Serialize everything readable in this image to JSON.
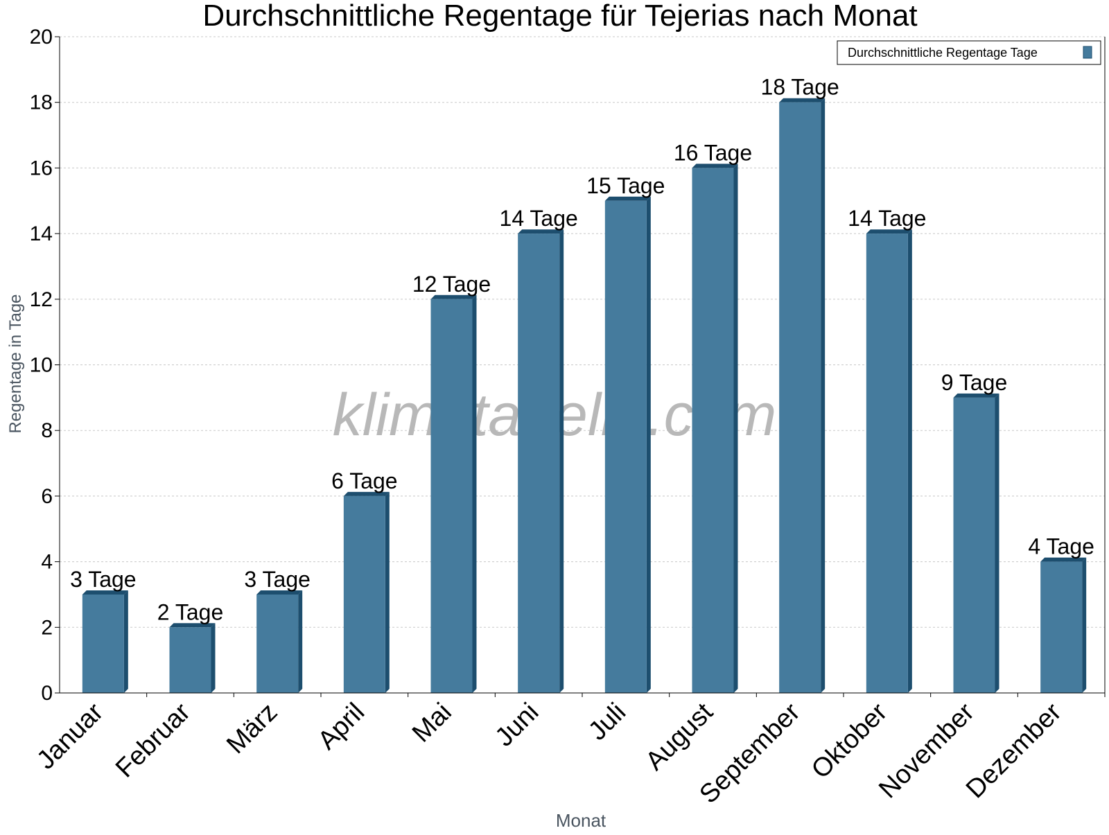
{
  "colors": {
    "bar_front": "#457b9d",
    "bar_side": "#1d4e6e",
    "grid": "#c8c8c8",
    "axis": "#000000",
    "watermark": "#b8b8b8"
  },
  "watermark": "klimatabelle.com",
  "legend": {
    "label": "Durchschnittliche Regentage Tage",
    "placement": "top-right"
  },
  "chart_data": {
    "type": "bar",
    "title": "Durchschnittliche Regentage für Tejerias nach Monat",
    "xlabel": "Monat",
    "ylabel": "Regentage in Tage",
    "ylim": [
      0,
      20
    ],
    "yticks": [
      0,
      2,
      4,
      6,
      8,
      10,
      12,
      14,
      16,
      18,
      20
    ],
    "grid": true,
    "categories": [
      "Januar",
      "Februar",
      "März",
      "April",
      "Mai",
      "Juni",
      "Juli",
      "August",
      "September",
      "Oktober",
      "November",
      "Dezember"
    ],
    "series": [
      {
        "name": "Durchschnittliche Regentage Tage",
        "values": [
          3,
          2,
          3,
          6,
          12,
          14,
          15,
          16,
          18,
          14,
          9,
          4
        ],
        "labels": [
          "3 Tage",
          "2 Tage",
          "3 Tage",
          "6 Tage",
          "12 Tage",
          "14 Tage",
          "15 Tage",
          "16 Tage",
          "18 Tage",
          "14 Tage",
          "9 Tage",
          "4 Tage"
        ]
      }
    ]
  }
}
